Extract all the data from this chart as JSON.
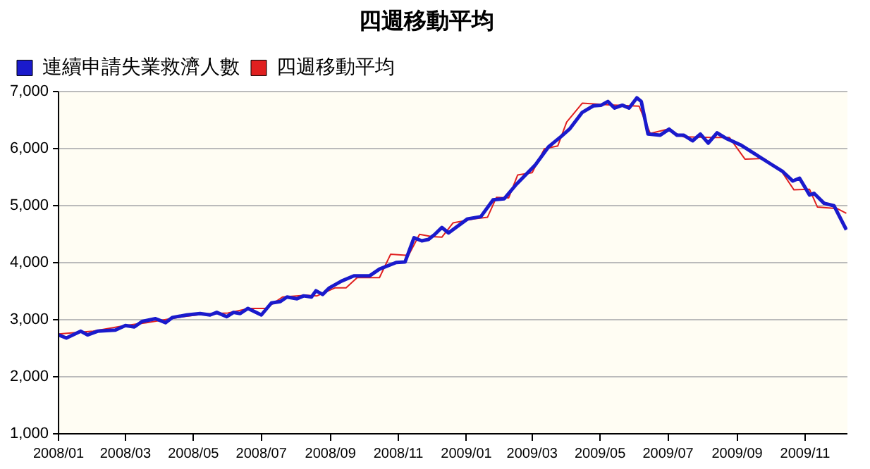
{
  "chart_data": {
    "type": "line",
    "title": "四週移動平均",
    "legend": "top left",
    "grid": "y",
    "marker": "none",
    "line_style": "solid",
    "xlim": [
      "2008-01-01",
      "2009-12-09"
    ],
    "xticks": [
      {
        "value": "2008-01",
        "label": "2008/01"
      },
      {
        "value": "2008-03",
        "label": "2008/03"
      },
      {
        "value": "2008-05",
        "label": "2008/05"
      },
      {
        "value": "2008-07",
        "label": "2008/07"
      },
      {
        "value": "2008-09",
        "label": "2008/09"
      },
      {
        "value": "2008-11",
        "label": "2008/11"
      },
      {
        "value": "2009-01",
        "label": "2009/01"
      },
      {
        "value": "2009-03",
        "label": "2009/03"
      },
      {
        "value": "2009-05",
        "label": "2009/05"
      },
      {
        "value": "2009-07",
        "label": "2009/07"
      },
      {
        "value": "2009-09",
        "label": "2009/09"
      },
      {
        "value": "2009-11",
        "label": "2009/11"
      }
    ],
    "ylim": [
      1000,
      7000
    ],
    "yticks": [
      {
        "value": 1000,
        "label": "1,000"
      },
      {
        "value": 2000,
        "label": "2,000"
      },
      {
        "value": 3000,
        "label": "3,000"
      },
      {
        "value": 4000,
        "label": "4,000"
      },
      {
        "value": 5000,
        "label": "5,000"
      },
      {
        "value": 6000,
        "label": "6,000"
      },
      {
        "value": 7000,
        "label": "7,000"
      }
    ],
    "series": [
      {
        "name": "連續申請失業救濟人數",
        "color": "#1a1acc",
        "x": [
          "2008-01-01",
          "2008-01-08",
          "2008-01-21",
          "2008-01-27",
          "2008-02-05",
          "2008-02-21",
          "2008-03-01",
          "2008-03-09",
          "2008-03-16",
          "2008-03-28",
          "2008-04-06",
          "2008-04-12",
          "2008-04-25",
          "2008-05-07",
          "2008-05-16",
          "2008-05-22",
          "2008-05-31",
          "2008-06-06",
          "2008-06-12",
          "2008-06-19",
          "2008-07-01",
          "2008-07-10",
          "2008-07-18",
          "2008-07-24",
          "2008-08-02",
          "2008-08-08",
          "2008-08-15",
          "2008-08-19",
          "2008-08-25",
          "2008-08-31",
          "2008-09-11",
          "2008-09-22",
          "2008-10-06",
          "2008-10-15",
          "2008-10-30",
          "2008-11-07",
          "2008-11-15",
          "2008-11-22",
          "2008-11-28",
          "2008-12-04",
          "2008-12-10",
          "2008-12-16",
          "2009-01-02",
          "2009-01-14",
          "2009-01-25",
          "2009-02-04",
          "2009-02-15",
          "2009-03-04",
          "2009-03-16",
          "2009-03-27",
          "2009-04-04",
          "2009-04-15",
          "2009-04-25",
          "2009-05-02",
          "2009-05-08",
          "2009-05-14",
          "2009-05-21",
          "2009-05-27",
          "2009-06-03",
          "2009-06-07",
          "2009-06-13",
          "2009-06-24",
          "2009-07-02",
          "2009-07-09",
          "2009-07-15",
          "2009-07-23",
          "2009-07-30",
          "2009-08-06",
          "2009-08-14",
          "2009-08-22",
          "2009-09-04",
          "2009-09-17",
          "2009-09-29",
          "2009-10-12",
          "2009-10-21",
          "2009-10-27",
          "2009-11-05",
          "2009-11-09",
          "2009-11-18",
          "2009-11-27",
          "2009-12-08"
        ],
        "values": [
          2735,
          2680,
          2800,
          2735,
          2800,
          2820,
          2900,
          2875,
          2970,
          3020,
          2950,
          3040,
          3085,
          3110,
          3085,
          3130,
          3055,
          3130,
          3110,
          3200,
          3085,
          3295,
          3320,
          3400,
          3370,
          3420,
          3400,
          3510,
          3445,
          3560,
          3680,
          3770,
          3770,
          3890,
          4005,
          4015,
          4440,
          4385,
          4410,
          4505,
          4620,
          4525,
          4770,
          4810,
          5105,
          5125,
          5380,
          5720,
          6040,
          6215,
          6355,
          6640,
          6755,
          6765,
          6830,
          6715,
          6765,
          6715,
          6895,
          6830,
          6260,
          6240,
          6345,
          6240,
          6240,
          6140,
          6260,
          6100,
          6280,
          6185,
          6070,
          5910,
          5760,
          5600,
          5435,
          5485,
          5190,
          5220,
          5045,
          5000,
          4580
        ]
      },
      {
        "name": "四週移動平均",
        "color": "#e02020",
        "x": [
          "2008-01-01",
          "2008-02-01",
          "2008-03-01",
          "2008-03-20",
          "2008-04-20",
          "2008-05-10",
          "2008-06-01",
          "2008-06-20",
          "2008-07-05",
          "2008-07-20",
          "2008-08-10",
          "2008-08-20",
          "2008-09-05",
          "2008-09-15",
          "2008-09-25",
          "2008-10-15",
          "2008-10-25",
          "2008-11-10",
          "2008-11-20",
          "2008-12-01",
          "2008-12-10",
          "2008-12-20",
          "2009-01-08",
          "2009-01-20",
          "2009-01-28",
          "2009-02-08",
          "2009-02-16",
          "2009-03-01",
          "2009-03-12",
          "2009-03-24",
          "2009-04-01",
          "2009-04-15",
          "2009-05-10",
          "2009-06-05",
          "2009-06-15",
          "2009-06-30",
          "2009-07-15",
          "2009-08-10",
          "2009-08-25",
          "2009-09-08",
          "2009-09-25",
          "2009-10-10",
          "2009-10-22",
          "2009-11-05",
          "2009-11-12",
          "2009-11-30",
          "2009-12-08"
        ],
        "values": [
          2750,
          2800,
          2900,
          2950,
          3050,
          3100,
          3120,
          3200,
          3200,
          3400,
          3430,
          3420,
          3560,
          3560,
          3740,
          3740,
          4150,
          4130,
          4500,
          4460,
          4450,
          4700,
          4770,
          4800,
          5150,
          5140,
          5540,
          5580,
          6000,
          6050,
          6470,
          6800,
          6770,
          6750,
          6270,
          6340,
          6210,
          6200,
          6200,
          5820,
          5830,
          5630,
          5280,
          5290,
          4980,
          4950,
          4870
        ]
      }
    ]
  }
}
